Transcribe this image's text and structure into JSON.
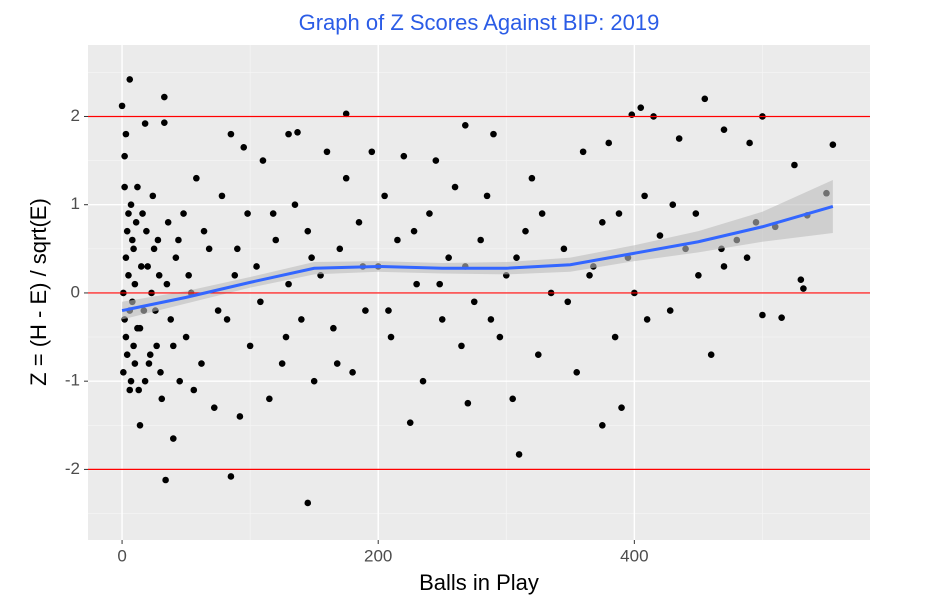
{
  "chart_data": {
    "type": "scatter",
    "title": "Graph of Z Scores Against BIP: 2019",
    "title_color": "#2b5ce6",
    "x_label": "Balls in Play",
    "y_label": "Z = (H - E) / sqrt(E)",
    "xlim": [
      -26.6,
      584
    ],
    "ylim": [
      -2.8,
      2.81
    ],
    "xticks": [
      0,
      200,
      400
    ],
    "yticks": [
      -2,
      -1,
      0,
      1,
      2
    ],
    "grid": true,
    "point_color": "#000000",
    "points": [
      [
        0,
        2.12
      ],
      [
        3,
        1.8
      ],
      [
        2,
        1.55
      ],
      [
        6,
        2.42
      ],
      [
        33,
        2.22
      ],
      [
        33,
        1.93
      ],
      [
        18,
        1.92
      ],
      [
        34,
        -2.12
      ],
      [
        85,
        -2.08
      ],
      [
        145,
        -2.38
      ],
      [
        310,
        -1.83
      ],
      [
        375,
        -1.5
      ],
      [
        390,
        -1.3
      ],
      [
        40,
        -1.65
      ],
      [
        14,
        -1.5
      ],
      [
        225,
        -1.47
      ],
      [
        270,
        -1.25
      ],
      [
        95,
        1.65
      ],
      [
        85,
        1.8
      ],
      [
        130,
        1.8
      ],
      [
        137,
        1.82
      ],
      [
        175,
        2.03
      ],
      [
        268,
        1.9
      ],
      [
        398,
        2.02
      ],
      [
        405,
        2.1
      ],
      [
        415,
        2.0
      ],
      [
        455,
        2.2
      ],
      [
        500,
        2.0
      ],
      [
        290,
        1.8
      ],
      [
        360,
        1.6
      ],
      [
        380,
        1.7
      ],
      [
        435,
        1.75
      ],
      [
        470,
        1.85
      ],
      [
        490,
        1.7
      ],
      [
        525,
        1.45
      ],
      [
        555,
        1.68
      ],
      [
        550,
        1.13
      ],
      [
        535,
        0.88
      ],
      [
        530,
        0.15
      ],
      [
        532,
        0.05
      ],
      [
        510,
        0.75
      ],
      [
        515,
        -0.28
      ],
      [
        500,
        -0.25
      ],
      [
        495,
        0.8
      ],
      [
        480,
        0.6
      ],
      [
        470,
        0.3
      ],
      [
        460,
        -0.7
      ],
      [
        450,
        0.2
      ],
      [
        440,
        0.5
      ],
      [
        430,
        1.0
      ],
      [
        420,
        0.65
      ],
      [
        410,
        -0.3
      ],
      [
        400,
        0.0
      ],
      [
        395,
        0.4
      ],
      [
        385,
        -0.5
      ],
      [
        375,
        0.8
      ],
      [
        365,
        0.2
      ],
      [
        355,
        -0.9
      ],
      [
        345,
        0.5
      ],
      [
        335,
        0.0
      ],
      [
        325,
        -0.7
      ],
      [
        320,
        1.3
      ],
      [
        315,
        0.7
      ],
      [
        305,
        -1.2
      ],
      [
        300,
        0.2
      ],
      [
        295,
        -0.5
      ],
      [
        285,
        1.1
      ],
      [
        280,
        0.6
      ],
      [
        275,
        -0.1
      ],
      [
        265,
        -0.6
      ],
      [
        260,
        1.2
      ],
      [
        255,
        0.4
      ],
      [
        250,
        -0.3
      ],
      [
        245,
        1.5
      ],
      [
        240,
        0.9
      ],
      [
        235,
        -1.0
      ],
      [
        230,
        0.1
      ],
      [
        220,
        1.55
      ],
      [
        215,
        0.6
      ],
      [
        210,
        -0.5
      ],
      [
        205,
        1.1
      ],
      [
        200,
        0.3
      ],
      [
        195,
        1.6
      ],
      [
        190,
        -0.2
      ],
      [
        185,
        0.8
      ],
      [
        180,
        -0.9
      ],
      [
        175,
        1.3
      ],
      [
        170,
        0.5
      ],
      [
        165,
        -0.4
      ],
      [
        160,
        1.6
      ],
      [
        155,
        0.2
      ],
      [
        150,
        -1.0
      ],
      [
        145,
        0.7
      ],
      [
        140,
        -0.3
      ],
      [
        135,
        1.0
      ],
      [
        130,
        0.1
      ],
      [
        125,
        -0.8
      ],
      [
        120,
        0.6
      ],
      [
        115,
        -1.2
      ],
      [
        110,
        1.5
      ],
      [
        105,
        0.3
      ],
      [
        100,
        -0.6
      ],
      [
        98,
        0.9
      ],
      [
        92,
        -1.4
      ],
      [
        88,
        0.2
      ],
      [
        82,
        -0.3
      ],
      [
        78,
        1.1
      ],
      [
        72,
        -1.3
      ],
      [
        68,
        0.5
      ],
      [
        62,
        -0.8
      ],
      [
        58,
        1.3
      ],
      [
        54,
        0.0
      ],
      [
        50,
        -0.5
      ],
      [
        48,
        0.9
      ],
      [
        45,
        -1.0
      ],
      [
        42,
        0.4
      ],
      [
        38,
        -0.3
      ],
      [
        36,
        0.8
      ],
      [
        30,
        -0.9
      ],
      [
        28,
        0.6
      ],
      [
        26,
        -0.2
      ],
      [
        24,
        1.1
      ],
      [
        22,
        -0.7
      ],
      [
        20,
        0.3
      ],
      [
        18,
        -1.0
      ],
      [
        16,
        0.9
      ],
      [
        14,
        -0.4
      ],
      [
        12,
        1.2
      ],
      [
        10,
        -0.8
      ],
      [
        9,
        0.5
      ],
      [
        8,
        -0.1
      ],
      [
        7,
        1.0
      ],
      [
        6,
        -1.1
      ],
      [
        5,
        0.2
      ],
      [
        4,
        0.7
      ],
      [
        3,
        -0.5
      ],
      [
        2,
        1.2
      ],
      [
        1,
        -0.9
      ],
      [
        1,
        0.0
      ],
      [
        2,
        -0.3
      ],
      [
        3,
        0.4
      ],
      [
        4,
        -0.7
      ],
      [
        5,
        0.9
      ],
      [
        6,
        -0.2
      ],
      [
        7,
        -1.0
      ],
      [
        8,
        0.6
      ],
      [
        9,
        -0.6
      ],
      [
        10,
        0.1
      ],
      [
        11,
        0.8
      ],
      [
        12,
        -0.4
      ],
      [
        13,
        -1.1
      ],
      [
        15,
        0.3
      ],
      [
        17,
        -0.2
      ],
      [
        19,
        0.7
      ],
      [
        21,
        -0.8
      ],
      [
        23,
        0.0
      ],
      [
        25,
        0.5
      ],
      [
        27,
        -0.6
      ],
      [
        29,
        0.2
      ],
      [
        31,
        -1.2
      ],
      [
        35,
        0.1
      ],
      [
        40,
        -0.6
      ],
      [
        44,
        0.6
      ],
      [
        52,
        0.2
      ],
      [
        56,
        -1.1
      ],
      [
        64,
        0.7
      ],
      [
        75,
        -0.2
      ],
      [
        90,
        0.5
      ],
      [
        108,
        -0.1
      ],
      [
        118,
        0.9
      ],
      [
        128,
        -0.5
      ],
      [
        148,
        0.4
      ],
      [
        168,
        -0.8
      ],
      [
        188,
        0.3
      ],
      [
        208,
        -0.2
      ],
      [
        228,
        0.7
      ],
      [
        248,
        0.1
      ],
      [
        268,
        0.3
      ],
      [
        288,
        -0.3
      ],
      [
        308,
        0.4
      ],
      [
        328,
        0.9
      ],
      [
        348,
        -0.1
      ],
      [
        368,
        0.3
      ],
      [
        388,
        0.9
      ],
      [
        408,
        1.1
      ],
      [
        428,
        -0.2
      ],
      [
        448,
        0.9
      ],
      [
        468,
        0.5
      ],
      [
        488,
        0.4
      ]
    ],
    "smooth": {
      "color": "#3366ff",
      "band_color": "#bdbdbd",
      "x": [
        0,
        50,
        100,
        150,
        200,
        250,
        300,
        350,
        400,
        450,
        500,
        555
      ],
      "values": [
        -0.2,
        -0.05,
        0.12,
        0.28,
        0.3,
        0.28,
        0.28,
        0.32,
        0.45,
        0.58,
        0.75,
        0.98
      ],
      "lower": [
        -0.3,
        -0.12,
        0.06,
        0.21,
        0.24,
        0.22,
        0.21,
        0.24,
        0.36,
        0.46,
        0.58,
        0.68
      ],
      "upper": [
        -0.1,
        0.02,
        0.18,
        0.35,
        0.36,
        0.34,
        0.35,
        0.4,
        0.54,
        0.7,
        0.92,
        1.28
      ]
    },
    "hlines": {
      "values": [
        -2,
        0,
        2
      ],
      "color": "#ff0000"
    }
  }
}
